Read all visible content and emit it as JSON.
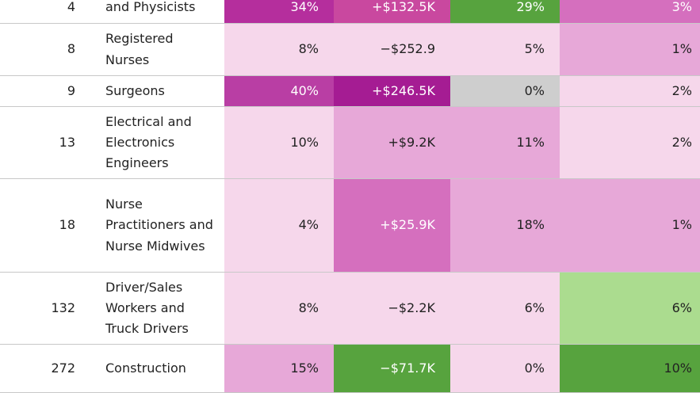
{
  "colors": {
    "pink_lightest": "#f6d7eb",
    "pink_light": "#e7a8d8",
    "pink_mid": "#d56fbe",
    "magenta": "#b52e9d",
    "magenta_dark": "#a51c93",
    "green_dark": "#57a33e",
    "green_light": "#abdc8f",
    "gray": "#cecece"
  },
  "rows": [
    {
      "rank": "4",
      "occupation": "and Physicists",
      "share": "34%",
      "pay": "+$132.5K",
      "growth": "29%",
      "last": "3%",
      "share_bg": "#b52e9d",
      "pay_bg": "#c9489f",
      "growth_bg": "#57a33e",
      "last_bg": "#d56fbe"
    },
    {
      "rank": "8",
      "occupation": "Registered Nurses",
      "share": "8%",
      "pay": "−$252.9",
      "growth": "5%",
      "last": "1%",
      "share_bg": "#f6d7eb",
      "pay_bg": "#f6d7eb",
      "growth_bg": "#f6d7eb",
      "last_bg": "#e7a8d8"
    },
    {
      "rank": "9",
      "occupation": "Surgeons",
      "share": "40%",
      "pay": "+$246.5K",
      "growth": "0%",
      "last": "2%",
      "share_bg": "#b93ea4",
      "pay_bg": "#a51c93",
      "growth_bg": "#cecece",
      "last_bg": "#f6d7eb"
    },
    {
      "rank": "13",
      "occupation": "Electrical and Electronics Engineers",
      "share": "10%",
      "pay": "+$9.2K",
      "growth": "11%",
      "last": "2%",
      "share_bg": "#f6d7eb",
      "pay_bg": "#e7a8d8",
      "growth_bg": "#e7a8d8",
      "last_bg": "#f6d7eb"
    },
    {
      "rank": "18",
      "occupation": "Nurse Practitioners and Nurse Midwives",
      "share": "4%",
      "pay": "+$25.9K",
      "growth": "18%",
      "last": "1%",
      "share_bg": "#f6d7eb",
      "pay_bg": "#d56fbe",
      "growth_bg": "#e7a8d8",
      "last_bg": "#e7a8d8"
    },
    {
      "rank": "132",
      "occupation": "Driver/Sales Workers and Truck Drivers",
      "share": "8%",
      "pay": "−$2.2K",
      "growth": "6%",
      "last": "6%",
      "share_bg": "#f6d7eb",
      "pay_bg": "#f6d7eb",
      "growth_bg": "#f6d7eb",
      "last_bg": "#abdc8f"
    },
    {
      "rank": "272",
      "occupation": "Construction",
      "share": "15%",
      "pay": "−$71.7K",
      "growth": "0%",
      "last": "10%",
      "share_bg": "#e7a8d8",
      "pay_bg": "#57a33e",
      "growth_bg": "#f6d7eb",
      "last_bg": "#57a33e"
    }
  ]
}
